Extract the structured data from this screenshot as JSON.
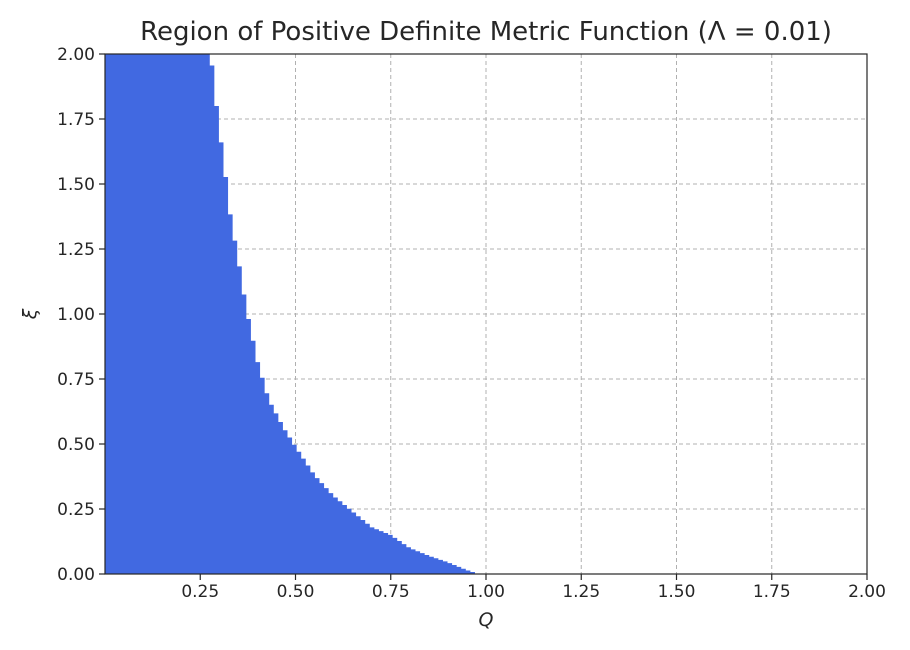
{
  "chart_data": {
    "type": "area",
    "title": "Region of Positive Definite Metric Function (Λ = 0.01)",
    "xlabel": "Q",
    "ylabel": "ξ",
    "xlim": [
      0,
      2
    ],
    "ylim": [
      0,
      2
    ],
    "x_ticks": [
      "0.25",
      "0.50",
      "0.75",
      "1.00",
      "1.25",
      "1.50",
      "1.75",
      "2.00"
    ],
    "y_ticks": [
      "0.00",
      "0.25",
      "0.50",
      "0.75",
      "1.00",
      "1.25",
      "1.50",
      "1.75",
      "2.00"
    ],
    "grid": true,
    "fill_color": "#4169e1",
    "boundary": {
      "x": [
        0.275,
        0.28,
        0.29,
        0.3,
        0.31,
        0.32,
        0.33,
        0.35,
        0.37,
        0.4,
        0.43,
        0.47,
        0.5,
        0.55,
        0.6,
        0.65,
        0.7,
        0.75,
        0.8,
        0.85,
        0.9,
        0.95,
        0.98
      ],
      "y": [
        2.0,
        1.97,
        1.83,
        1.73,
        1.59,
        1.5,
        1.37,
        1.21,
        1.03,
        0.82,
        0.67,
        0.56,
        0.49,
        0.38,
        0.3,
        0.24,
        0.18,
        0.15,
        0.1,
        0.07,
        0.045,
        0.015,
        0.0
      ]
    }
  }
}
